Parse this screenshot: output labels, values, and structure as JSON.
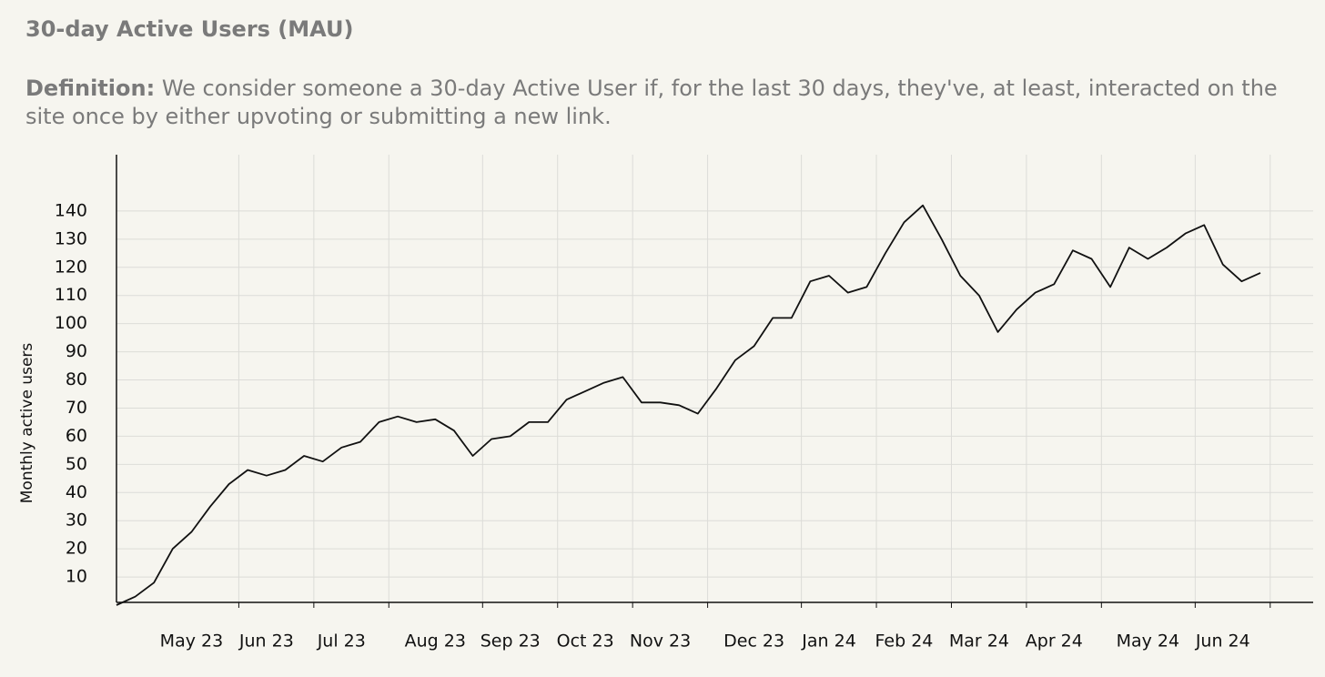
{
  "heading": "30-day Active Users (MAU)",
  "definition": {
    "label": "Definition:",
    "text": "We consider someone a 30-day Active User if, for the last 30 days, they've, at least, interacted on the site once by either upvoting or submitting a new link."
  },
  "chart_data": {
    "type": "line",
    "y_label": "Monthly active users",
    "categories": [
      null,
      null,
      null,
      null,
      "May 23",
      null,
      null,
      null,
      "Jun 23",
      null,
      null,
      null,
      "Jul 23",
      null,
      null,
      null,
      null,
      "Aug 23",
      null,
      null,
      null,
      "Sep 23",
      null,
      null,
      null,
      "Oct 23",
      null,
      null,
      null,
      "Nov 23",
      null,
      null,
      null,
      null,
      "Dec 23",
      null,
      null,
      null,
      "Jan 24",
      null,
      null,
      null,
      "Feb 24",
      null,
      null,
      null,
      "Mar 24",
      null,
      null,
      null,
      "Apr 24",
      null,
      null,
      null,
      null,
      "May 24",
      null,
      null,
      null,
      "Jun 24",
      null,
      null
    ],
    "series": [
      {
        "name": "MAU",
        "color": "#111111",
        "values": [
          0,
          3,
          8,
          20,
          26,
          35,
          43,
          48,
          46,
          48,
          53,
          51,
          56,
          58,
          65,
          67,
          65,
          66,
          62,
          53,
          59,
          60,
          65,
          65,
          73,
          76,
          79,
          81,
          72,
          72,
          71,
          68,
          77,
          87,
          92,
          102,
          102,
          115,
          117,
          111,
          113,
          125,
          136,
          142,
          130,
          117,
          110,
          97,
          105,
          111,
          114,
          126,
          123,
          113,
          127,
          123,
          127,
          132,
          135,
          121,
          115,
          118
        ]
      }
    ],
    "ylim": [
      0,
      160
    ],
    "yticks": [
      10,
      20,
      30,
      40,
      50,
      60,
      70,
      80,
      90,
      100,
      110,
      120,
      130,
      140
    ],
    "grid": true
  }
}
